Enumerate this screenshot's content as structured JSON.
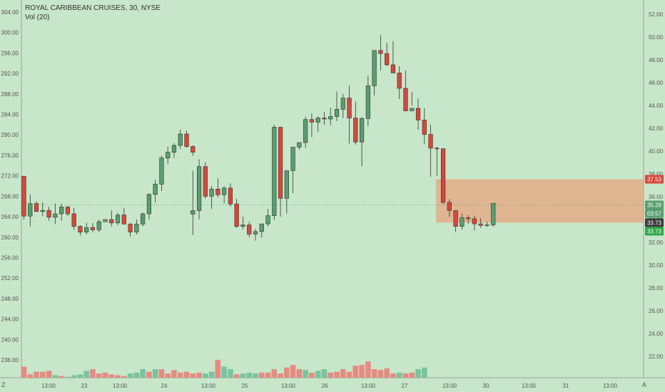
{
  "legend": {
    "title": "ROYAL CARIBBEAN CRUISES, 30, NYSE",
    "volume": "Vol (20)"
  },
  "bottom_left_label": "Z",
  "bottom_right_label": "A",
  "colors": {
    "up": "#5a9e6f",
    "down": "#d9473b",
    "vol_up": "#79c39f",
    "vol_down": "#e58b81",
    "background": "#c8e6c9",
    "zone_fill": "#e8a07a",
    "zone_label": "#d9473b",
    "last_label": "#5a9e6f",
    "countdown_label": "#5a9e6f",
    "level_label": "#3a3a3a",
    "low_label": "#2ea84a"
  },
  "chart_data": {
    "type": "candlestick",
    "title": "ROYAL CARIBBEAN CRUISES, 30, NYSE",
    "x_ticks": [
      "13:00",
      "23",
      "13:00",
      "24",
      "13:00",
      "25",
      "13:00",
      "26",
      "13:00",
      "27",
      "13:00",
      "30",
      "13:00",
      "31",
      "13:00"
    ],
    "left_axis": {
      "min": 232,
      "max": 304,
      "ticks": [
        "304.00",
        "300.00",
        "296.00",
        "292.00",
        "288.00",
        "284.00",
        "280.00",
        "276.00",
        "272.00",
        "268.00",
        "264.00",
        "260.00",
        "256.00",
        "252.00",
        "248.00",
        "244.00",
        "240.00",
        "236.00"
      ]
    },
    "right_axis": {
      "min": 20.6,
      "max": 52.8,
      "ticks": [
        "52.00",
        "50.00",
        "48.00",
        "46.00",
        "44.00",
        "42.00",
        "40.00",
        "38.00",
        "36.00",
        "34.00",
        "32.00",
        "30.00",
        "28.00",
        "26.00",
        "24.00",
        "22.00"
      ]
    },
    "price_labels": {
      "zone_top": "37.53",
      "last": "35.28",
      "countdown": "03:57",
      "level": "33.73",
      "low": "33.73"
    },
    "zone": {
      "top": 37.53,
      "bottom": 33.73
    },
    "last_price": 35.28,
    "upper_candles": [
      [
        37.8,
        37.8,
        34.0,
        34.3
      ],
      [
        34.3,
        36.2,
        33.4,
        35.4
      ],
      [
        35.4,
        35.6,
        34.7,
        34.7
      ],
      [
        34.7,
        35.5,
        34.3,
        34.8
      ],
      [
        34.8,
        35.1,
        33.9,
        34.2
      ],
      [
        34.2,
        35.4,
        33.6,
        34.5
      ],
      [
        34.5,
        35.4,
        33.9,
        35.1
      ],
      [
        35.1,
        35.2,
        34.3,
        34.5
      ],
      [
        34.5,
        35.0,
        33.1,
        33.4
      ],
      [
        33.4,
        33.5,
        32.6,
        32.9
      ],
      [
        32.9,
        33.7,
        32.7,
        33.3
      ],
      [
        33.3,
        33.7,
        32.9,
        33.1
      ],
      [
        33.1,
        34.0,
        32.9,
        33.8
      ],
      [
        33.8,
        34.0,
        33.8,
        34.0
      ],
      [
        34.0,
        34.8,
        33.4,
        33.7
      ],
      [
        33.7,
        34.6,
        33.5,
        34.4
      ],
      [
        34.4,
        35.0,
        33.7,
        33.6
      ],
      [
        33.6,
        33.7,
        32.5,
        32.9
      ],
      [
        32.9,
        34.0,
        32.7,
        33.6
      ],
      [
        33.6,
        34.6,
        33.4,
        34.5
      ],
      [
        34.5,
        36.3,
        34.0,
        36.2
      ],
      [
        36.2,
        37.5,
        35.5,
        37.1
      ],
      [
        37.1,
        39.6,
        36.5,
        39.4
      ],
      [
        39.4,
        40.4,
        38.9,
        39.9
      ],
      [
        39.9,
        40.7,
        39.4,
        40.5
      ],
      [
        40.5,
        41.9,
        40.2,
        41.5
      ],
      [
        41.5,
        41.8,
        40.3,
        40.4
      ],
      [
        40.4,
        40.5,
        39.6,
        39.9
      ]
    ],
    "lower_candles": [
      [
        264.5,
        273.0,
        260.4,
        265.2
      ],
      [
        265.2,
        275.2,
        263.5,
        273.8
      ],
      [
        273.8,
        274.7,
        267.5,
        268.0
      ],
      [
        268.0,
        270.0,
        265.5,
        269.4
      ],
      [
        269.4,
        271.5,
        267.8,
        268.3
      ],
      [
        268.3,
        270.0,
        266.6,
        269.6
      ],
      [
        269.6,
        270.5,
        266.0,
        266.5
      ],
      [
        266.5,
        267.5,
        261.8,
        262.1
      ],
      [
        262.1,
        264.0,
        261.5,
        262.4
      ],
      [
        262.4,
        263.0,
        260.0,
        260.6
      ],
      [
        260.6,
        261.6,
        259.3,
        261.1
      ],
      [
        261.1,
        262.6,
        259.9,
        262.6
      ],
      [
        262.6,
        265.5,
        262.1,
        264.2
      ],
      [
        264.2,
        282.0,
        263.4,
        281.5
      ],
      [
        281.5,
        276.0,
        264.0,
        267.6
      ],
      [
        267.6,
        272.6,
        264.6,
        273.0
      ],
      [
        273.0,
        276.7,
        268.6,
        277.6
      ],
      [
        277.6,
        278.2,
        277.1,
        278.5
      ],
      [
        278.5,
        283.6,
        277.5,
        283.0
      ],
      [
        283.0,
        284.2,
        279.6,
        282.5
      ],
      [
        282.5,
        283.6,
        280.6,
        283.3
      ],
      [
        283.3,
        284.5,
        282.0,
        283.1
      ],
      [
        283.1,
        285.3,
        281.9,
        283.6
      ],
      [
        283.6,
        288.5,
        282.7,
        285.0
      ],
      [
        285.0,
        288.0,
        283.3,
        287.2
      ],
      [
        287.2,
        289.6,
        278.3,
        283.3
      ],
      [
        283.3,
        286.5,
        278.1,
        278.6
      ],
      [
        278.6,
        283.5,
        273.9,
        283.2
      ],
      [
        283.2,
        291.6,
        281.7,
        289.6
      ],
      [
        289.6,
        295.5,
        287.7,
        296.5
      ],
      [
        296.5,
        299.5,
        292.6,
        295.9
      ],
      [
        295.9,
        298.0,
        293.4,
        293.7
      ],
      [
        293.7,
        298.3,
        292.8,
        292.1
      ],
      [
        292.1,
        293.4,
        287.0,
        289.1
      ],
      [
        289.1,
        292.6,
        284.6,
        284.7
      ],
      [
        284.7,
        288.4,
        285.7,
        285.2
      ],
      [
        285.2,
        287.1,
        281.0,
        282.9
      ],
      [
        282.9,
        285.2,
        278.2,
        280.1
      ],
      [
        280.1,
        282.0,
        271.8,
        277.4
      ],
      [
        277.4,
        277.7,
        272.0,
        277.3
      ],
      [
        277.3,
        271.0,
        266.5,
        266.8
      ],
      [
        266.8,
        267.4,
        264.0,
        265.2
      ],
      [
        265.2,
        265.3,
        261.0,
        262.1
      ],
      [
        262.1,
        264.6,
        261.5,
        263.8
      ],
      [
        263.8,
        264.3,
        262.6,
        263.6
      ],
      [
        263.6,
        264.2,
        261.3,
        262.6
      ],
      [
        262.6,
        263.7,
        261.8,
        262.3
      ],
      [
        262.3,
        263.0,
        262.0,
        262.4
      ],
      [
        262.4,
        263.4,
        262.0,
        266.6
      ]
    ],
    "volume_percent": [
      [
        13,
        "down"
      ],
      [
        4,
        "down"
      ],
      [
        7,
        "down"
      ],
      [
        7,
        "down"
      ],
      [
        8,
        "down"
      ],
      [
        3,
        "up"
      ],
      [
        2,
        "down"
      ],
      [
        1,
        "up"
      ],
      [
        3,
        "up"
      ],
      [
        4,
        "up"
      ],
      [
        8,
        "up"
      ],
      [
        10,
        "down"
      ],
      [
        5,
        "down"
      ],
      [
        6,
        "down"
      ],
      [
        4,
        "down"
      ],
      [
        3,
        "down"
      ],
      [
        2,
        "down"
      ],
      [
        5,
        "up"
      ],
      [
        6,
        "up"
      ],
      [
        10,
        "up"
      ],
      [
        7,
        "down"
      ],
      [
        10,
        "up"
      ],
      [
        10,
        "down"
      ],
      [
        5,
        "down"
      ],
      [
        9,
        "down"
      ],
      [
        6,
        "down"
      ],
      [
        7,
        "down"
      ],
      [
        5,
        "down"
      ],
      [
        6,
        "down"
      ],
      [
        5,
        "up"
      ],
      [
        7,
        "up"
      ],
      [
        21,
        "down"
      ],
      [
        13,
        "up"
      ],
      [
        10,
        "up"
      ],
      [
        4,
        "down"
      ],
      [
        5,
        "up"
      ],
      [
        6,
        "up"
      ],
      [
        5,
        "up"
      ],
      [
        6,
        "down"
      ],
      [
        6,
        "down"
      ],
      [
        10,
        "down"
      ],
      [
        5,
        "down"
      ],
      [
        12,
        "down"
      ],
      [
        15,
        "down"
      ],
      [
        10,
        "down"
      ],
      [
        9,
        "up"
      ],
      [
        6,
        "down"
      ],
      [
        8,
        "up"
      ],
      [
        10,
        "up"
      ],
      [
        6,
        "down"
      ],
      [
        7,
        "down"
      ],
      [
        10,
        "down"
      ],
      [
        7,
        "down"
      ],
      [
        14,
        "down"
      ],
      [
        15,
        "down"
      ],
      [
        19,
        "down"
      ],
      [
        10,
        "down"
      ],
      [
        9,
        "down"
      ],
      [
        11,
        "down"
      ],
      [
        5,
        "down"
      ],
      [
        6,
        "up"
      ],
      [
        5,
        "down"
      ],
      [
        6,
        "down"
      ],
      [
        10,
        "up"
      ],
      [
        12,
        "up"
      ]
    ]
  }
}
